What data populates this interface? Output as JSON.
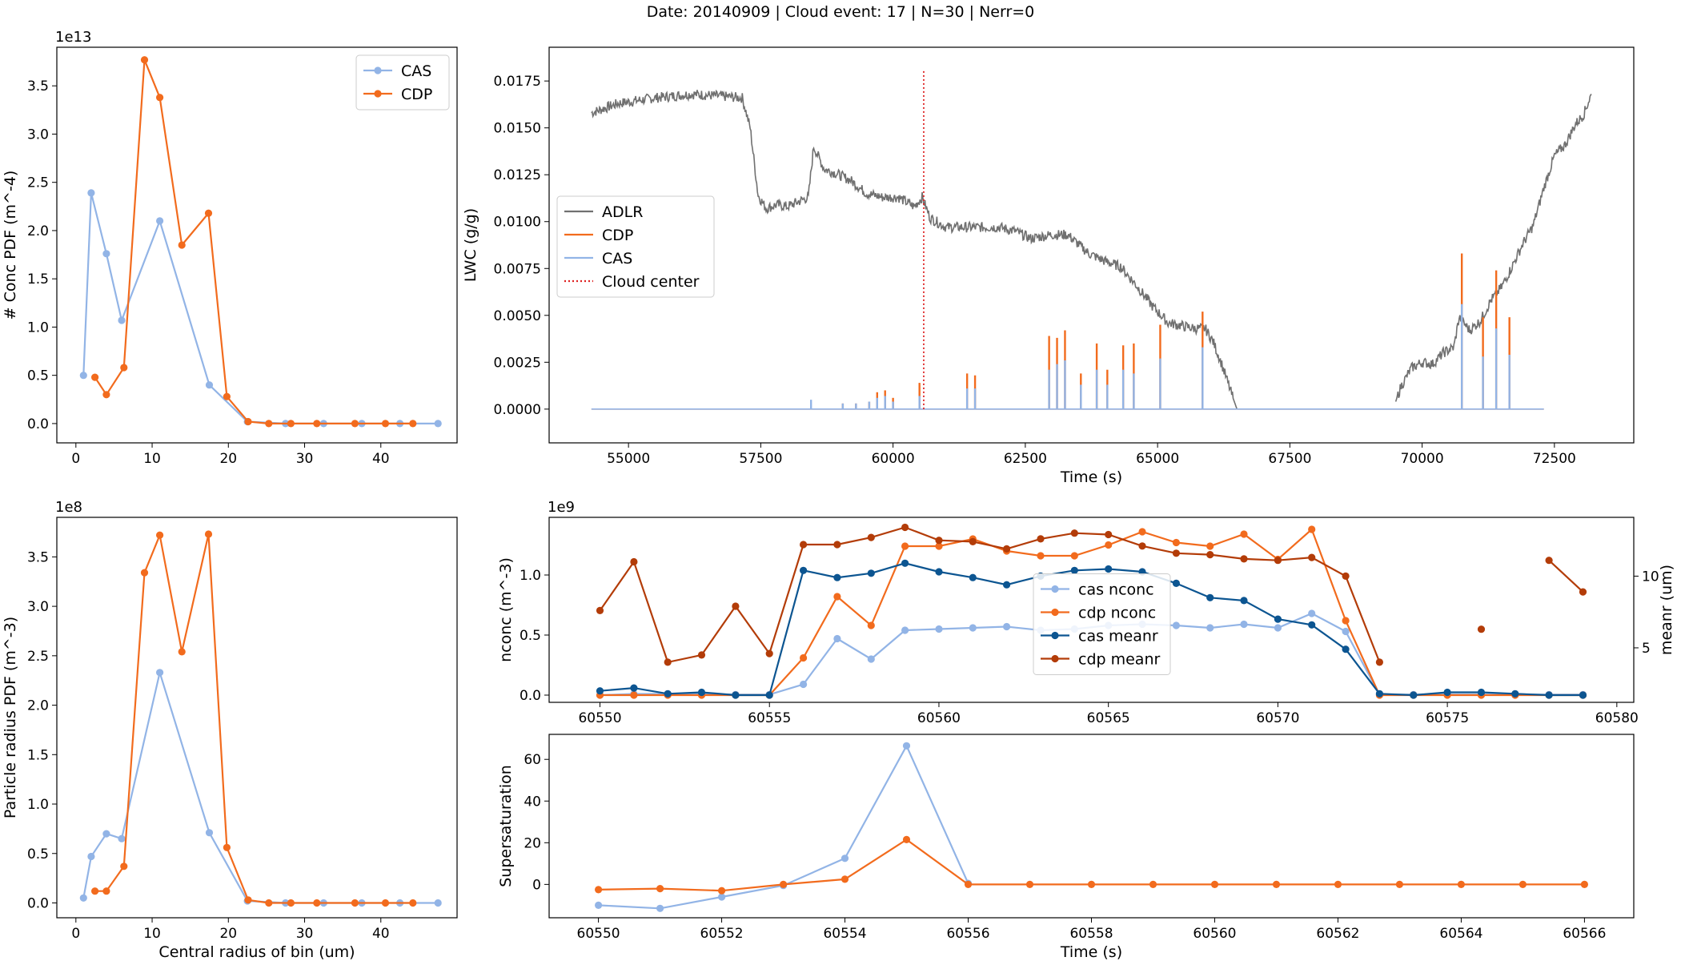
{
  "suptitle": "Date: 20140909 | Cloud event: 17 | N=30 | Nerr=0",
  "colors": {
    "cas": "#92b4e6",
    "cdp": "#f26b1d",
    "adlr": "#707070",
    "cas_meanr": "#0c5591",
    "cdp_meanr": "#b33c08",
    "cloud_center": "#dd2020"
  },
  "chart_data": [
    {
      "id": "conc_pdf",
      "type": "line",
      "xlabel": "",
      "ylabel": "# Conc PDF (m^-4)",
      "y_offset_text": "1e13",
      "xlim": [
        -2.5,
        50
      ],
      "ylim": [
        -0.2,
        3.9
      ],
      "xticks": [
        0,
        10,
        20,
        30,
        40
      ],
      "yticks": [
        0.0,
        0.5,
        1.0,
        1.5,
        2.0,
        2.5,
        3.0,
        3.5
      ],
      "legend": "upper right",
      "series": [
        {
          "name": "CAS",
          "color_key": "cas",
          "x": [
            1.0,
            2.0,
            4.0,
            6.0,
            11.0,
            17.5,
            22.5,
            27.5,
            32.5,
            37.5,
            42.5,
            47.5
          ],
          "y": [
            0.5,
            2.39,
            1.76,
            1.07,
            2.1,
            0.4,
            0.02,
            0.0,
            0.0,
            0.0,
            0.0,
            0.0
          ]
        },
        {
          "name": "CDP",
          "color_key": "cdp",
          "x": [
            2.5,
            4.0,
            6.3,
            9.0,
            11.0,
            13.9,
            17.4,
            19.8,
            22.6,
            25.3,
            28.2,
            31.6,
            36.6,
            40.6,
            44.2
          ],
          "y": [
            0.48,
            0.3,
            0.58,
            3.77,
            3.38,
            1.85,
            2.18,
            0.28,
            0.02,
            0.0,
            0.0,
            0.0,
            0.0,
            0.0,
            0.0
          ]
        }
      ]
    },
    {
      "id": "lwc_time",
      "type": "line",
      "xlabel": "Time (s)",
      "ylabel": "LWC (g/g)",
      "xlim": [
        53500,
        74000
      ],
      "ylim": [
        -0.0018,
        0.0193
      ],
      "xticks": [
        55000,
        57500,
        60000,
        62500,
        65000,
        67500,
        70000,
        72500
      ],
      "yticks": [
        0.0,
        0.0025,
        0.005,
        0.0075,
        0.01,
        0.0125,
        0.015,
        0.0175
      ],
      "ytick_labels": [
        "0.0000",
        "0.0025",
        "0.0050",
        "0.0075",
        "0.0100",
        "0.0125",
        "0.0150",
        "0.0175"
      ],
      "legend": "center left",
      "series": [
        {
          "name": "ADLR",
          "color_key": "adlr",
          "segments": [
            {
              "x": [
                54300,
                54800,
                55500,
                56200,
                56700,
                57150,
                57300,
                57450,
                57600,
                57800,
                58000,
                58400,
                58500,
                58700,
                58900,
                59200,
                59500,
                59800,
                60100,
                60400,
                60550,
                60700,
                61000,
                61500,
                62000,
                62300,
                62600,
                63000,
                63300,
                63700,
                64000,
                64300,
                64600,
                64900,
                65200,
                65700,
                65900,
                66050,
                66200,
                66400,
                66500
              ],
              "y": [
                0.0158,
                0.0163,
                0.0166,
                0.0168,
                0.0167,
                0.0166,
                0.015,
                0.0114,
                0.0107,
                0.0109,
                0.0108,
                0.0113,
                0.014,
                0.0128,
                0.0126,
                0.0122,
                0.0115,
                0.0113,
                0.0113,
                0.0108,
                0.0113,
                0.0102,
                0.0097,
                0.0097,
                0.0097,
                0.0095,
                0.0091,
                0.0093,
                0.0093,
                0.0083,
                0.0079,
                0.0076,
                0.0066,
                0.0055,
                0.0046,
                0.0043,
                0.0043,
                0.0036,
                0.0025,
                0.0008,
                0.0
              ]
            },
            {
              "x": [
                69500,
                69600,
                69800,
                70000,
                70200,
                70400,
                70600,
                70700,
                70900,
                71100,
                71300,
                71500,
                71700,
                71900,
                72100,
                72300,
                72500,
                72700,
                72900,
                73050,
                73200
              ],
              "y": [
                0.0004,
                0.0012,
                0.0022,
                0.0025,
                0.0024,
                0.003,
                0.0033,
                0.0049,
                0.0042,
                0.0047,
                0.0058,
                0.0065,
                0.0076,
                0.0088,
                0.0098,
                0.0118,
                0.0135,
                0.0141,
                0.0152,
                0.0157,
                0.0168
              ]
            }
          ]
        },
        {
          "name": "CDP",
          "color_key": "cdp",
          "base": [
            54300,
            72300
          ],
          "spikes": [
            [
              59050,
              0.0003
            ],
            [
              59300,
              0.0003
            ],
            [
              59550,
              0.0004
            ],
            [
              59700,
              0.0009
            ],
            [
              59850,
              0.001
            ],
            [
              60000,
              0.0006
            ],
            [
              60500,
              0.0014
            ],
            [
              61400,
              0.0019
            ],
            [
              61550,
              0.0018
            ],
            [
              62950,
              0.0039
            ],
            [
              63100,
              0.0038
            ],
            [
              63250,
              0.0042
            ],
            [
              63550,
              0.0019
            ],
            [
              63850,
              0.0035
            ],
            [
              64050,
              0.0021
            ],
            [
              64350,
              0.0034
            ],
            [
              64550,
              0.0035
            ],
            [
              65050,
              0.0045
            ],
            [
              65850,
              0.0052
            ],
            [
              70750,
              0.0083
            ],
            [
              71150,
              0.0049
            ],
            [
              71400,
              0.0074
            ],
            [
              71650,
              0.0049
            ]
          ]
        },
        {
          "name": "CAS",
          "color_key": "cas",
          "base": [
            54300,
            72300
          ],
          "spikes": [
            [
              58450,
              0.0005
            ],
            [
              59050,
              0.0003
            ],
            [
              59300,
              0.0003
            ],
            [
              59550,
              0.0004
            ],
            [
              59700,
              0.0006
            ],
            [
              59850,
              0.0007
            ],
            [
              60000,
              0.0004
            ],
            [
              60500,
              0.0007
            ],
            [
              61400,
              0.0011
            ],
            [
              61550,
              0.0011
            ],
            [
              62950,
              0.0021
            ],
            [
              63100,
              0.0024
            ],
            [
              63250,
              0.0026
            ],
            [
              63550,
              0.0013
            ],
            [
              63850,
              0.0021
            ],
            [
              64050,
              0.0013
            ],
            [
              64350,
              0.0021
            ],
            [
              64550,
              0.0019
            ],
            [
              65050,
              0.0027
            ],
            [
              65850,
              0.0033
            ],
            [
              70750,
              0.0056
            ],
            [
              71150,
              0.0028
            ],
            [
              71400,
              0.0043
            ],
            [
              71650,
              0.0029
            ]
          ]
        },
        {
          "name": "Cloud center",
          "color_key": "cloud_center",
          "vline_x": 60580,
          "y_range": [
            0.0,
            0.0181
          ]
        }
      ]
    },
    {
      "id": "radius_pdf",
      "type": "line",
      "xlabel": "Central radius of bin (um)",
      "ylabel": "Particle radius PDF (m^-3)",
      "y_offset_text": "1e8",
      "xlim": [
        -2.5,
        50
      ],
      "ylim": [
        -0.15,
        3.9
      ],
      "xticks": [
        0,
        10,
        20,
        30,
        40
      ],
      "yticks": [
        0.0,
        0.5,
        1.0,
        1.5,
        2.0,
        2.5,
        3.0,
        3.5
      ],
      "series": [
        {
          "name": "CAS",
          "color_key": "cas",
          "x": [
            1.0,
            2.0,
            4.0,
            6.0,
            11.0,
            17.5,
            22.5,
            27.5,
            32.5,
            37.5,
            42.5,
            47.5
          ],
          "y": [
            0.05,
            0.47,
            0.7,
            0.65,
            2.33,
            0.71,
            0.02,
            0.0,
            0.0,
            0.0,
            0.0,
            0.0
          ]
        },
        {
          "name": "CDP",
          "color_key": "cdp",
          "x": [
            2.5,
            4.0,
            6.3,
            9.0,
            11.0,
            13.9,
            17.4,
            19.8,
            22.6,
            25.3,
            28.2,
            31.6,
            36.6,
            40.6,
            44.2
          ],
          "y": [
            0.12,
            0.12,
            0.37,
            3.34,
            3.72,
            2.54,
            3.73,
            0.56,
            0.03,
            0.0,
            0.0,
            0.0,
            0.0,
            0.0,
            0.0
          ]
        }
      ]
    },
    {
      "id": "nconc_meanr",
      "type": "line",
      "xlabel": "",
      "ylabel": "nconc (m^-3)",
      "y2label": "meanr (um)",
      "y_offset_text": "1e9",
      "xlim": [
        60548.5,
        60580.5
      ],
      "ylim": [
        -0.06,
        1.48
      ],
      "y2lim": [
        1.2,
        14.1
      ],
      "xticks": [
        60550,
        60555,
        60560,
        60565,
        60570,
        60575,
        60580
      ],
      "yticks": [
        0.0,
        0.5,
        1.0
      ],
      "y2ticks": [
        5,
        10
      ],
      "legend": "center",
      "series": [
        {
          "name": "cas nconc",
          "color_key": "cas",
          "axis": "left",
          "x": [
            60550,
            60551,
            60552,
            60553,
            60554,
            60555,
            60556,
            60557,
            60558,
            60559,
            60560,
            60561,
            60562,
            60563,
            60564,
            60565,
            60566,
            60567,
            60568,
            60569,
            60570,
            60571,
            60572,
            60573,
            60574,
            60575,
            60576,
            60577,
            60578,
            60579
          ],
          "y": [
            0.0,
            0.01,
            0.01,
            0.01,
            0.005,
            0.005,
            0.09,
            0.47,
            0.3,
            0.54,
            0.55,
            0.56,
            0.57,
            0.54,
            0.55,
            0.58,
            0.59,
            0.58,
            0.56,
            0.59,
            0.56,
            0.68,
            0.53,
            0.005,
            0.005,
            0.005,
            0.005,
            0.005,
            0.005,
            0.005
          ]
        },
        {
          "name": "cdp nconc",
          "color_key": "cdp",
          "axis": "left",
          "x": [
            60550,
            60551,
            60552,
            60553,
            60554,
            60555,
            60556,
            60557,
            60558,
            60559,
            60560,
            60561,
            60562,
            60563,
            60564,
            60565,
            60566,
            60567,
            60568,
            60569,
            60570,
            60571,
            60572,
            60573,
            60574,
            60575,
            60576,
            60577,
            60578,
            60579
          ],
          "y": [
            0.0,
            0.0,
            0.0,
            0.0,
            0.0,
            0.0,
            0.31,
            0.82,
            0.58,
            1.24,
            1.24,
            1.3,
            1.2,
            1.16,
            1.16,
            1.25,
            1.36,
            1.27,
            1.24,
            1.34,
            1.13,
            1.38,
            0.62,
            0.0,
            0.0,
            0.0,
            0.0,
            0.0,
            0.0,
            0.0
          ]
        },
        {
          "name": "cas meanr",
          "color_key": "cas_meanr",
          "axis": "right",
          "x": [
            60550,
            60551,
            60552,
            60553,
            60554,
            60555,
            60556,
            60557,
            60558,
            60559,
            60560,
            60561,
            60562,
            60563,
            60564,
            60565,
            60566,
            60567,
            60568,
            60569,
            60570,
            60571,
            60572,
            60573,
            60574,
            60575,
            60576,
            60577,
            60578,
            60579
          ],
          "y": [
            2.0,
            2.2,
            1.8,
            1.9,
            1.7,
            1.7,
            10.4,
            9.9,
            10.2,
            10.9,
            10.3,
            9.9,
            9.4,
            10.0,
            10.4,
            10.5,
            10.3,
            9.5,
            8.5,
            8.3,
            7.0,
            6.6,
            4.9,
            1.8,
            1.7,
            1.9,
            1.9,
            1.8,
            1.7,
            1.7
          ]
        },
        {
          "name": "cdp meanr",
          "color_key": "cdp_meanr",
          "axis": "right",
          "segments": [
            {
              "x": [
                60550,
                60551,
                60552,
                60553,
                60554,
                60555,
                60556,
                60557,
                60558,
                60559,
                60560,
                60561,
                60562,
                60563,
                60564,
                60565,
                60566,
                60567,
                60568,
                60569,
                60570,
                60571,
                60572,
                60573
              ],
              "y": [
                7.6,
                11.0,
                4.0,
                4.5,
                7.9,
                4.6,
                12.2,
                12.2,
                12.7,
                13.4,
                12.5,
                12.4,
                11.9,
                12.6,
                13.0,
                12.9,
                12.1,
                11.6,
                11.5,
                11.2,
                11.1,
                11.3,
                10.0,
                4.0
              ]
            },
            {
              "x": [
                60576
              ],
              "y": [
                6.3
              ]
            },
            {
              "x": [
                60578,
                60579
              ],
              "y": [
                11.1,
                8.9
              ]
            }
          ]
        }
      ]
    },
    {
      "id": "supersaturation",
      "type": "line",
      "xlabel": "Time (s)",
      "ylabel": "Supersaturation",
      "xlim": [
        60549.2,
        60566.8
      ],
      "ylim": [
        -16,
        72
      ],
      "xticks": [
        60550,
        60552,
        60554,
        60556,
        60558,
        60560,
        60562,
        60564,
        60566
      ],
      "yticks": [
        0,
        20,
        40,
        60
      ],
      "series": [
        {
          "name": "cas",
          "color_key": "cas",
          "x": [
            60550,
            60551,
            60552,
            60553,
            60554,
            60555,
            60556
          ],
          "y": [
            -10,
            -11.5,
            -6,
            -0.5,
            12.5,
            66.5,
            0.5
          ]
        },
        {
          "name": "cdp",
          "color_key": "cdp",
          "x": [
            60550,
            60551,
            60552,
            60553,
            60554,
            60555,
            60556,
            60557,
            60558,
            60559,
            60560,
            60561,
            60562,
            60563,
            60564,
            60565,
            60566
          ],
          "y": [
            -2.5,
            -2,
            -3,
            0,
            2.5,
            21.5,
            0,
            0,
            0,
            0,
            0,
            0,
            0,
            0,
            0,
            0,
            0
          ]
        }
      ]
    }
  ]
}
